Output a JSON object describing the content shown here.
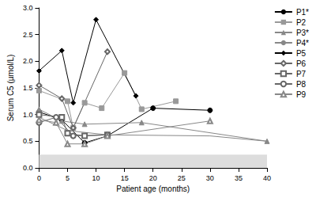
{
  "chart_data": {
    "type": "line",
    "x_label": "Patient age (months)",
    "y_label": "Serum C5 (µmol/L)",
    "xlim": [
      0,
      40
    ],
    "xticks": [
      0,
      5,
      10,
      15,
      20,
      25,
      30,
      35,
      40
    ],
    "ylim": [
      0,
      3
    ],
    "yticks": [
      {
        "value": 0,
        "label": "0.0"
      },
      0.5,
      {
        "value": 1,
        "label": "1.0"
      },
      1.5,
      {
        "value": 2,
        "label": "2.0"
      },
      2.5,
      {
        "value": 3,
        "label": "3.0"
      }
    ],
    "shaded_range": [
      0,
      0.25
    ],
    "grid": false,
    "legend": "right",
    "series": [
      {
        "name": "P1*",
        "color": "#000000",
        "marker": "circle",
        "x": [
          0,
          4,
          8,
          12,
          20,
          30
        ],
        "values": [
          1.05,
          0.9,
          0.47,
          0.6,
          1.12,
          1.08
        ]
      },
      {
        "name": "P2",
        "color": "#999999",
        "marker": "square",
        "x": [
          0,
          5,
          6,
          8,
          11,
          15,
          18,
          24
        ],
        "values": [
          1.45,
          1.25,
          0.75,
          1.22,
          1.12,
          1.78,
          1.1,
          1.25
        ]
      },
      {
        "name": "P3*",
        "color": "#888888",
        "marker": "triangle",
        "x": [
          0,
          4,
          8,
          18,
          40
        ],
        "values": [
          1.1,
          0.88,
          0.82,
          0.85,
          0.5
        ]
      },
      {
        "name": "P4*",
        "color": "#888888",
        "marker": "none",
        "x": [
          0,
          5,
          12,
          30,
          40
        ],
        "values": [
          0.95,
          0.7,
          0.62,
          0.6,
          0.5
        ]
      },
      {
        "name": "P5",
        "color": "#000000",
        "marker": "diamond",
        "x": [
          0,
          4,
          6,
          10,
          17
        ],
        "values": [
          1.82,
          2.2,
          1.22,
          2.78,
          1.35
        ]
      },
      {
        "name": "P6",
        "color": "#666666",
        "marker": "open_diamond",
        "x": [
          0,
          4,
          6,
          12
        ],
        "values": [
          1.55,
          1.3,
          0.75,
          2.18
        ]
      },
      {
        "name": "P7",
        "color": "#666666",
        "marker": "open_square",
        "x": [
          0,
          4,
          5,
          8,
          12
        ],
        "values": [
          1.0,
          0.95,
          0.65,
          0.6,
          0.62
        ]
      },
      {
        "name": "P8",
        "color": "#666666",
        "marker": "open_circle",
        "x": [
          0,
          3,
          6,
          12
        ],
        "values": [
          0.85,
          0.95,
          0.6,
          0.62
        ]
      },
      {
        "name": "P9",
        "color": "#888888",
        "marker": "open_triangle",
        "x": [
          0,
          3,
          5,
          8,
          12,
          30
        ],
        "values": [
          0.9,
          0.85,
          0.45,
          0.45,
          0.6,
          0.88
        ]
      }
    ]
  }
}
